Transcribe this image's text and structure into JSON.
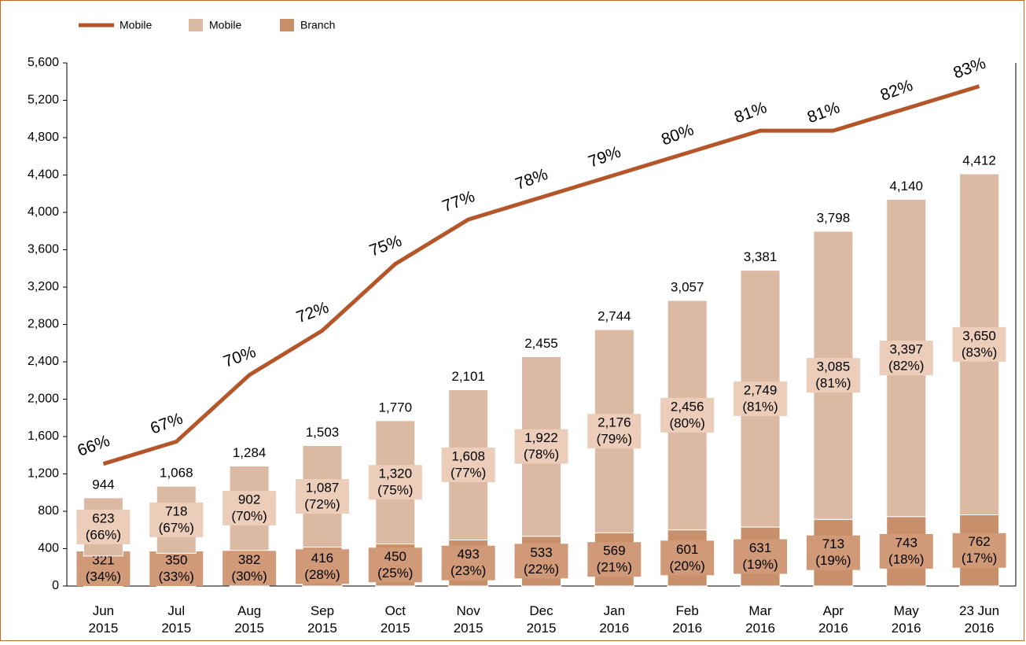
{
  "chart_data": {
    "type": "bar",
    "categories": [
      "Jun 2015",
      "Jul 2015",
      "Aug 2015",
      "Sep 2015",
      "Oct 2015",
      "Nov 2015",
      "Dec 2015",
      "Jan 2016",
      "Feb 2016",
      "Mar 2016",
      "Apr 2016",
      "May 2016",
      "23 Jun 2016"
    ],
    "series": [
      {
        "name": "Branch",
        "color": "#c8906a",
        "label_color": "#d09a78",
        "values": [
          321,
          350,
          382,
          416,
          450,
          493,
          533,
          569,
          601,
          631,
          713,
          743,
          762
        ],
        "value_labels": [
          "321",
          "350",
          "382",
          "416",
          "450",
          "493",
          "533",
          "569",
          "601",
          "631",
          "713",
          "743",
          "762"
        ],
        "shares": [
          34,
          33,
          30,
          28,
          25,
          23,
          22,
          21,
          20,
          19,
          19,
          18,
          17
        ],
        "share_labels": [
          "(34%)",
          "(33%)",
          "(30%)",
          "(28%)",
          "(25%)",
          "(23%)",
          "(22%)",
          "(21%)",
          "(20%)",
          "(19%)",
          "(19%)",
          "(18%)",
          "(17%)"
        ]
      },
      {
        "name": "Mobile",
        "color": "#dcb9a2",
        "label_color": "#ebcdb9",
        "values": [
          623,
          718,
          902,
          1087,
          1320,
          1608,
          1922,
          2176,
          2456,
          2749,
          3085,
          3397,
          3650
        ],
        "value_labels": [
          "623",
          "718",
          "902",
          "1,087",
          "1,320",
          "1,608",
          "1,922",
          "2,176",
          "2,456",
          "2,749",
          "3,085",
          "3,397",
          "3,650"
        ],
        "shares": [
          66,
          67,
          70,
          72,
          75,
          77,
          78,
          79,
          80,
          81,
          81,
          82,
          83
        ],
        "share_labels": [
          "(66%)",
          "(67%)",
          "(70%)",
          "(72%)",
          "(75%)",
          "(77%)",
          "(78%)",
          "(79%)",
          "(80%)",
          "(81%)",
          "(81%)",
          "(82%)",
          "(83%)"
        ]
      },
      {
        "name": "Mobile",
        "type": "line",
        "axis": "y2",
        "color": "#b5562a",
        "values": [
          66,
          67,
          70,
          72,
          75,
          77,
          78,
          79,
          80,
          81,
          81,
          82,
          83
        ],
        "value_labels": [
          "66%",
          "67%",
          "70%",
          "72%",
          "75%",
          "77%",
          "78%",
          "79%",
          "80%",
          "81%",
          "81%",
          "82%",
          "83%"
        ]
      }
    ],
    "totals": [
      944,
      1068,
      1284,
      1503,
      1770,
      2101,
      2455,
      2744,
      3057,
      3381,
      3798,
      4140,
      4412
    ],
    "total_labels": [
      "944",
      "1,068",
      "1,284",
      "1,503",
      "1,770",
      "2,101",
      "2,455",
      "2,744",
      "3,057",
      "3,381",
      "3,798",
      "4,140",
      "4,412"
    ],
    "ylim": [
      0,
      5600
    ],
    "yticks": [
      0,
      400,
      800,
      {
        "value": 1200,
        "label": "1,200"
      },
      {
        "value": 1600,
        "label": "1,600"
      },
      {
        "value": 2000,
        "label": "2,000"
      },
      {
        "value": 2400,
        "label": "2,400"
      },
      {
        "value": 2800,
        "label": "2,800"
      },
      {
        "value": 3200,
        "label": "3,200"
      },
      {
        "value": 3600,
        "label": "3,600"
      },
      {
        "value": 4000,
        "label": "4,000"
      },
      {
        "value": 4400,
        "label": "4,400"
      },
      {
        "value": 4800,
        "label": "4,800"
      },
      {
        "value": 5200,
        "label": "5,200"
      },
      {
        "value": 5600,
        "label": "5,600"
      }
    ],
    "y2lim": [
      60.5,
      84.05
    ],
    "grid": false
  }
}
